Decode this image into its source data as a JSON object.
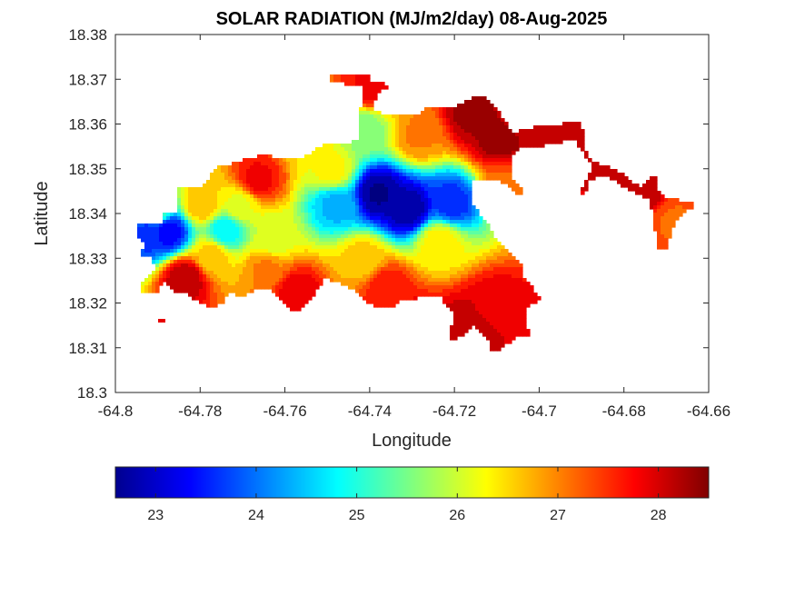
{
  "chart_data": {
    "type": "heatmap",
    "title": "SOLAR RADIATION (MJ/m2/day) 08-Aug-2025",
    "xlabel": "Longitude",
    "ylabel": "Latitude",
    "xlim": [
      -64.8,
      -64.66
    ],
    "ylim": [
      18.3,
      18.38
    ],
    "x_ticks": [
      -64.8,
      -64.78,
      -64.76,
      -64.74,
      -64.72,
      -64.7,
      -64.68,
      -64.66
    ],
    "x_tick_labels": [
      "-64.8",
      "-64.78",
      "-64.76",
      "-64.74",
      "-64.72",
      "-64.7",
      "-64.68",
      "-64.66"
    ],
    "y_ticks": [
      18.3,
      18.31,
      18.32,
      18.33,
      18.34,
      18.35,
      18.36,
      18.37,
      18.38
    ],
    "y_tick_labels": [
      "18.3",
      "18.31",
      "18.32",
      "18.33",
      "18.34",
      "18.35",
      "18.36",
      "18.37",
      "18.38"
    ],
    "grid": false,
    "colormap": "jet",
    "colorbar": {
      "orientation": "horizontal",
      "range": [
        22.6,
        28.5
      ],
      "ticks": [
        23,
        24,
        25,
        26,
        27,
        28
      ],
      "tick_labels": [
        "23",
        "24",
        "25",
        "26",
        "27",
        "28"
      ]
    },
    "hotspots": [
      {
        "lon": -64.738,
        "lat": 18.3445,
        "value": 22.7
      },
      {
        "lon": -64.731,
        "lat": 18.341,
        "value": 22.8
      },
      {
        "lon": -64.7875,
        "lat": 18.336,
        "value": 23.3
      },
      {
        "lon": -64.792,
        "lat": 18.3355,
        "value": 23.6
      },
      {
        "lon": -64.748,
        "lat": 18.342,
        "value": 24.4
      },
      {
        "lon": -64.774,
        "lat": 18.336,
        "value": 24.8
      },
      {
        "lon": -64.741,
        "lat": 18.359,
        "value": 25.6
      },
      {
        "lon": -64.716,
        "lat": 18.3625,
        "value": 28.3
      },
      {
        "lon": -64.709,
        "lat": 18.357,
        "value": 28.4
      },
      {
        "lon": -64.7055,
        "lat": 18.3605,
        "value": 28.1
      },
      {
        "lon": -64.692,
        "lat": 18.3575,
        "value": 28.2
      },
      {
        "lon": -64.684,
        "lat": 18.3495,
        "value": 28.0
      },
      {
        "lon": -64.675,
        "lat": 18.3445,
        "value": 28.1
      },
      {
        "lon": -64.7295,
        "lat": 18.3145,
        "value": 28.0
      },
      {
        "lon": -64.717,
        "lat": 18.3145,
        "value": 28.2
      },
      {
        "lon": -64.711,
        "lat": 18.319,
        "value": 27.9
      },
      {
        "lon": -64.7835,
        "lat": 18.3255,
        "value": 28.2
      },
      {
        "lon": -64.7665,
        "lat": 18.3475,
        "value": 27.8
      },
      {
        "lon": -64.7575,
        "lat": 18.3225,
        "value": 27.9
      },
      {
        "lon": -64.736,
        "lat": 18.3235,
        "value": 27.7
      },
      {
        "lon": -64.749,
        "lat": 18.3495,
        "value": 26.3
      },
      {
        "lon": -64.763,
        "lat": 18.3345,
        "value": 26.0
      },
      {
        "lon": -64.777,
        "lat": 18.3305,
        "value": 26.6
      },
      {
        "lon": -64.7905,
        "lat": 18.3405,
        "value": 25.4
      },
      {
        "lon": -64.7415,
        "lat": 18.3295,
        "value": 26.6
      },
      {
        "lon": -64.7645,
        "lat": 18.3275,
        "value": 27.0
      },
      {
        "lon": -64.7395,
        "lat": 18.368,
        "value": 27.8
      },
      {
        "lon": -64.6685,
        "lat": 18.3385,
        "value": 27.2
      },
      {
        "lon": -64.707,
        "lat": 18.3465,
        "value": 27.2
      },
      {
        "lon": -64.7235,
        "lat": 18.3335,
        "value": 26.4
      },
      {
        "lon": -64.7285,
        "lat": 18.3575,
        "value": 27.0
      },
      {
        "lon": -64.755,
        "lat": 18.3575,
        "value": 26.5
      },
      {
        "lon": -64.7795,
        "lat": 18.342,
        "value": 26.7
      },
      {
        "lon": -64.7705,
        "lat": 18.342,
        "value": 26.2
      },
      {
        "lon": -64.7205,
        "lat": 18.3425,
        "value": 23.6
      }
    ]
  }
}
